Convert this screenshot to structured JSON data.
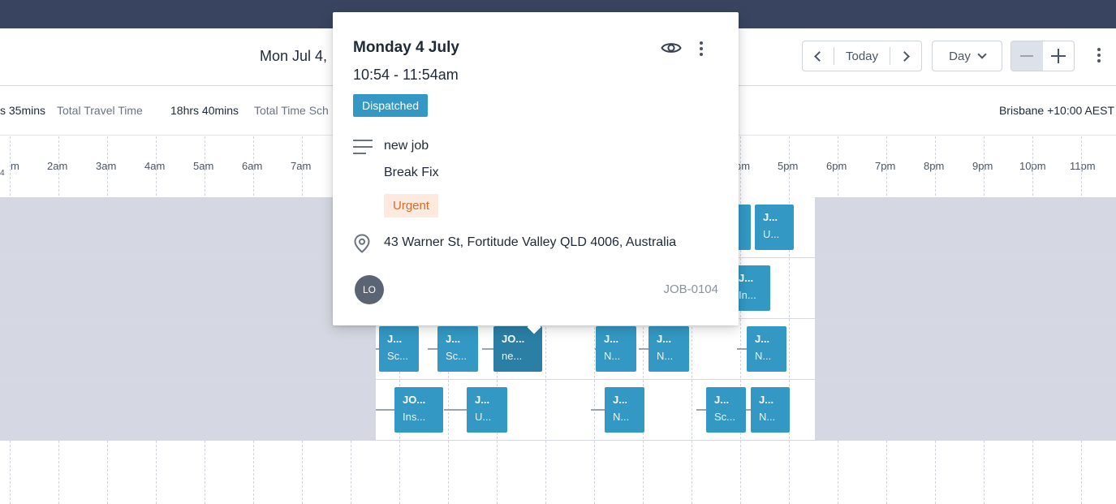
{
  "toolbar": {
    "date_title": "Mon Jul 4,",
    "prev_label": "",
    "today_label": "Today",
    "view_label": "Day",
    "icons": {
      "prev": "chevron-left-icon",
      "next": "chevron-right-icon",
      "view": "chevron-down-icon",
      "zoom_out": "minus-icon",
      "zoom_in": "plus-icon",
      "more": "more-vertical-icon"
    }
  },
  "stats": {
    "travel_value": "s 35mins",
    "travel_label": "Total Travel Time",
    "scheduled_value": "18hrs 40mins",
    "scheduled_label": "Total Time Sch",
    "timezone": "Brisbane +10:00 AEST"
  },
  "timeline": {
    "corner_label": "4",
    "hours": [
      "m",
      "2am",
      "3am",
      "4am",
      "5am",
      "6am",
      "7am",
      "pm",
      "5pm",
      "6pm",
      "7pm",
      "8pm",
      "9pm",
      "10pm",
      "11pm"
    ]
  },
  "rows": [
    {
      "jobs": [
        {
          "id": "",
          "type": ""
        },
        {
          "id": "J...",
          "type": "U..."
        }
      ]
    },
    {
      "jobs": [
        {
          "id": "J...",
          "type": "In..."
        }
      ]
    },
    {
      "jobs": [
        {
          "id": "J...",
          "type": "Sc..."
        },
        {
          "id": "J...",
          "type": "Sc..."
        },
        {
          "id": "JO...",
          "type": "ne...",
          "selected": true
        },
        {
          "id": "J...",
          "type": "N..."
        },
        {
          "id": "J...",
          "type": "N..."
        },
        {
          "id": "J...",
          "type": "N..."
        }
      ]
    },
    {
      "jobs": [
        {
          "id": "JO...",
          "type": "Ins..."
        },
        {
          "id": "J...",
          "type": "U..."
        },
        {
          "id": "J...",
          "type": "N..."
        },
        {
          "id": "J...",
          "type": "Sc..."
        },
        {
          "id": "J...",
          "type": "N..."
        }
      ]
    }
  ],
  "popover": {
    "date": "Monday 4 July",
    "time": "10:54 - 11:54am",
    "status": "Dispatched",
    "title": "new job",
    "category": "Break Fix",
    "priority": "Urgent",
    "address": "43 Warner St, Fortitude Valley QLD 4006, Australia",
    "assignee_initials": "LO",
    "job_number": "JOB-0104",
    "colors": {
      "status": "#3399c4",
      "priority_bg": "#fde9de",
      "priority_text": "#d46b2c"
    },
    "icons": {
      "view": "eye-icon",
      "more": "more-vertical-icon",
      "description": "text-lines-icon",
      "location": "map-pin-icon"
    }
  }
}
